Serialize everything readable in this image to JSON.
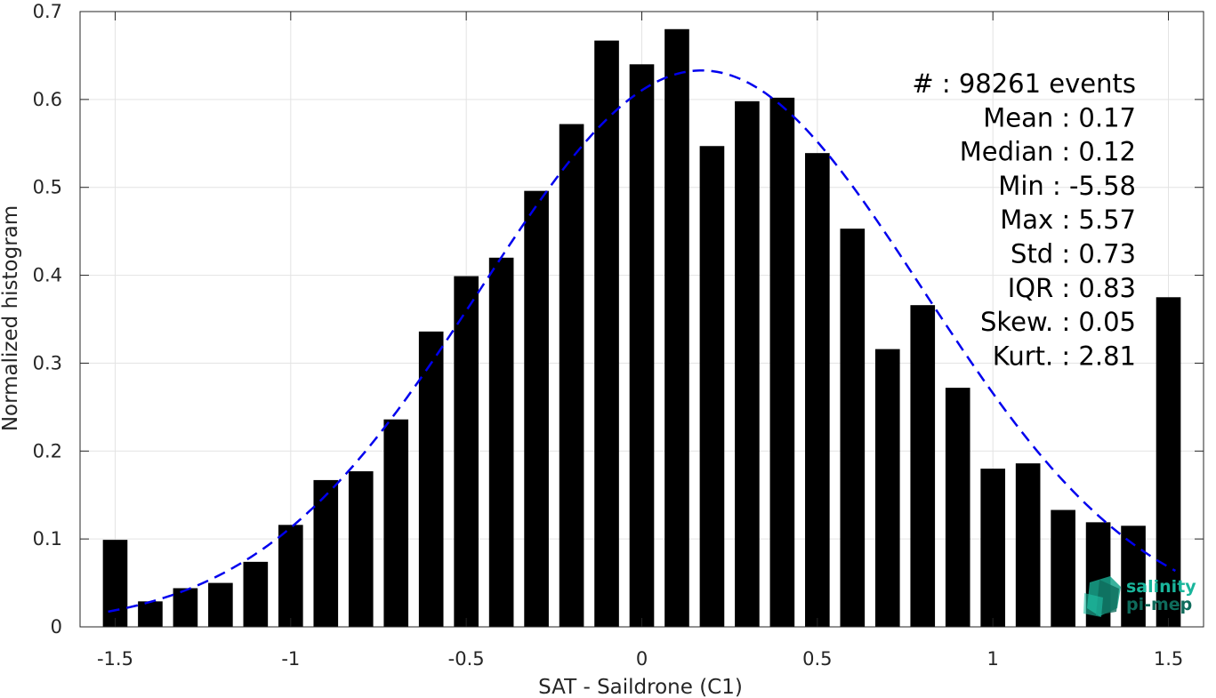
{
  "chart_data": {
    "type": "bar",
    "xlabel": "SAT - Saildrone (C1)",
    "ylabel": "Normalized histogram",
    "xlim": [
      -1.6,
      1.6
    ],
    "ylim": [
      0,
      0.7
    ],
    "xticks": [
      -1.5,
      -1,
      -0.5,
      0,
      0.5,
      1,
      1.5
    ],
    "xtick_labels": [
      "-1.5",
      "-1",
      "-0.5",
      "0",
      "0.5",
      "1",
      "1.5"
    ],
    "yticks": [
      0,
      0.1,
      0.2,
      0.3,
      0.4,
      0.5,
      0.6,
      0.7
    ],
    "ytick_labels": [
      "0",
      "0.1",
      "0.2",
      "0.3",
      "0.4",
      "0.5",
      "0.6",
      "0.7"
    ],
    "grid": true,
    "bar_width": 0.07,
    "bar_color": "#000000",
    "bars": [
      {
        "x": -1.5,
        "y": 0.099
      },
      {
        "x": -1.4,
        "y": 0.029
      },
      {
        "x": -1.3,
        "y": 0.044
      },
      {
        "x": -1.2,
        "y": 0.05
      },
      {
        "x": -1.1,
        "y": 0.074
      },
      {
        "x": -1.0,
        "y": 0.116
      },
      {
        "x": -0.9,
        "y": 0.167
      },
      {
        "x": -0.8,
        "y": 0.177
      },
      {
        "x": -0.7,
        "y": 0.236
      },
      {
        "x": -0.6,
        "y": 0.336
      },
      {
        "x": -0.5,
        "y": 0.399
      },
      {
        "x": -0.4,
        "y": 0.42
      },
      {
        "x": -0.3,
        "y": 0.496
      },
      {
        "x": -0.2,
        "y": 0.572
      },
      {
        "x": -0.1,
        "y": 0.667
      },
      {
        "x": 0.0,
        "y": 0.64
      },
      {
        "x": 0.1,
        "y": 0.68
      },
      {
        "x": 0.2,
        "y": 0.547
      },
      {
        "x": 0.3,
        "y": 0.598
      },
      {
        "x": 0.4,
        "y": 0.602
      },
      {
        "x": 0.5,
        "y": 0.539
      },
      {
        "x": 0.6,
        "y": 0.453
      },
      {
        "x": 0.7,
        "y": 0.316
      },
      {
        "x": 0.8,
        "y": 0.366
      },
      {
        "x": 0.9,
        "y": 0.272
      },
      {
        "x": 1.0,
        "y": 0.18
      },
      {
        "x": 1.1,
        "y": 0.186
      },
      {
        "x": 1.2,
        "y": 0.133
      },
      {
        "x": 1.3,
        "y": 0.119
      },
      {
        "x": 1.4,
        "y": 0.115
      },
      {
        "x": 1.5,
        "y": 0.375
      }
    ],
    "fit_curve": {
      "style": "dashed",
      "color": "#0000ee",
      "mean": 0.17,
      "std": 0.63,
      "peak": 0.633,
      "x_range": [
        -1.52,
        1.52
      ]
    },
    "annotations": [
      "#  : 98261 events",
      "Mean : 0.17",
      "Median : 0.12",
      "Min : -5.58",
      "Max : 5.57",
      "Std : 0.73",
      "IQR : 0.83",
      "Skew. : 0.05",
      "Kurt. : 2.81"
    ]
  },
  "logo": {
    "line1": "salinity",
    "line2": "pi-mep",
    "color1": "#19b59b",
    "color2": "#0e6b5b"
  }
}
